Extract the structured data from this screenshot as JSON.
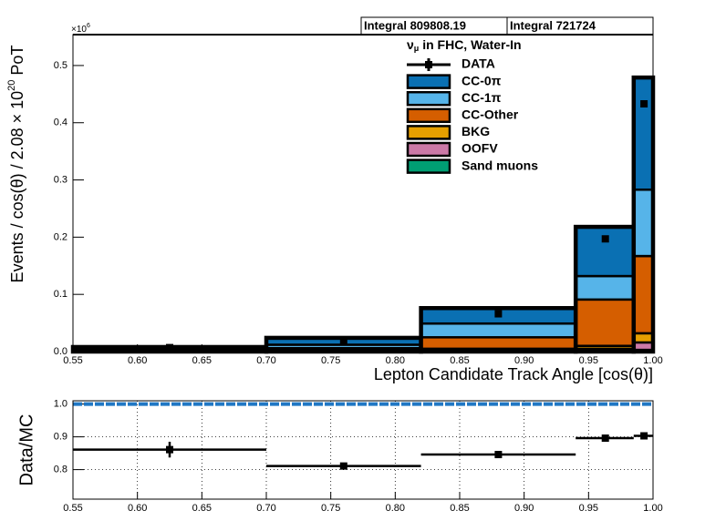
{
  "chart_data": [
    {
      "type": "histogram",
      "stats": [
        "Integral 809808.19",
        "Integral 721724"
      ],
      "legend_title": {
        "nu": "ν",
        "sub": "μ",
        "rest": " in FHC, Water-In"
      },
      "y_multiplier": {
        "base": "×10",
        "exp": "6"
      },
      "xlabel": "Lepton Candidate Track Angle [cos(θ)]",
      "ylabel": {
        "pre": "Events / cos(θ) / 2.08 × 10",
        "sup": "20",
        "post": " PoT"
      },
      "bins": [
        0.55,
        0.7,
        0.82,
        0.94,
        0.985,
        1.0
      ],
      "series": [
        {
          "name": "CC-0π",
          "color": "#0a70b3",
          "values": [
            0.004,
            0.012,
            0.027,
            0.086,
            0.196
          ]
        },
        {
          "name": "CC-1π",
          "color": "#56b4e9",
          "values": [
            0.002,
            0.006,
            0.024,
            0.041,
            0.116
          ]
        },
        {
          "name": "CC-Other",
          "color": "#d55e00",
          "values": [
            0.001,
            0.004,
            0.02,
            0.081,
            0.135
          ]
        },
        {
          "name": "BKG",
          "color": "#e69f00",
          "values": [
            0.0005,
            0.001,
            0.003,
            0.005,
            0.016
          ]
        },
        {
          "name": "OOFV",
          "color": "#cc79a7",
          "values": [
            0.0005,
            0.001,
            0.002,
            0.004,
            0.013
          ]
        },
        {
          "name": "Sand muons",
          "color": "#009e73",
          "values": [
            0.0,
            0.0,
            0.0,
            0.001,
            0.003
          ]
        }
      ],
      "data": {
        "name": "DATA",
        "color": "#000000",
        "x": [
          0.625,
          0.76,
          0.88,
          0.963,
          0.993
        ],
        "values": [
          0.007,
          0.019,
          0.066,
          0.197,
          0.433
        ]
      },
      "xlim": [
        0.55,
        1.0
      ],
      "xticks": [
        0.55,
        {
          "value": 0.6,
          "label": "0.60"
        },
        0.65,
        {
          "value": 0.7,
          "label": "0.70"
        },
        0.75,
        {
          "value": 0.8,
          "label": "0.80"
        },
        0.85,
        {
          "value": 0.9,
          "label": "0.90"
        },
        0.95,
        {
          "value": 1.0,
          "label": "1.00"
        }
      ],
      "ylim": [
        0,
        0.554
      ],
      "yticks": [
        {
          "value": 0,
          "label": "0.0"
        },
        0.1,
        0.2,
        0.3,
        0.4,
        0.5
      ]
    },
    {
      "type": "ratio",
      "ylabel": "Data/MC",
      "bins": [
        0.55,
        0.7,
        0.82,
        0.94,
        0.985,
        1.0
      ],
      "x": [
        0.625,
        0.76,
        0.88,
        0.963,
        0.993
      ],
      "values": [
        0.861,
        0.811,
        0.846,
        0.896,
        0.903
      ],
      "errors": [
        0.024,
        0.01,
        0.004,
        0.004,
        0.006
      ],
      "reference": {
        "value": 1.0,
        "color": "#1f77c4"
      },
      "grid": true,
      "xlim": [
        0.55,
        1.0
      ],
      "xticks": [
        0.55,
        {
          "value": 0.6,
          "label": "0.60"
        },
        0.65,
        {
          "value": 0.7,
          "label": "0.70"
        },
        0.75,
        {
          "value": 0.8,
          "label": "0.80"
        },
        0.85,
        {
          "value": 0.9,
          "label": "0.90"
        },
        0.95,
        {
          "value": 1.0,
          "label": "1.00"
        }
      ],
      "ylim": [
        0.71,
        1.01
      ],
      "yticks": [
        0.8,
        0.9,
        {
          "value": 1.0,
          "label": "1.0"
        }
      ]
    }
  ]
}
